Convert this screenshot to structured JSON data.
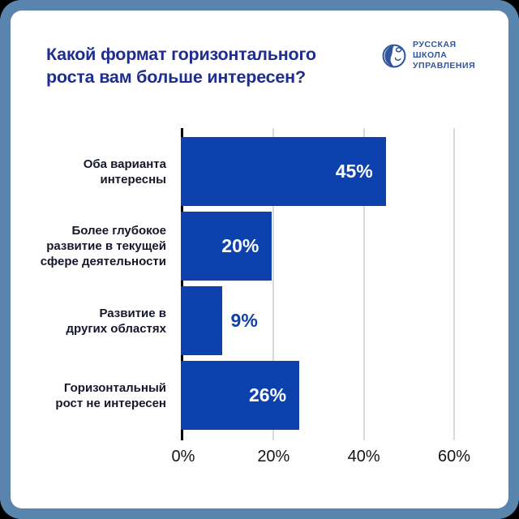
{
  "frame": {
    "outer_background": "#000000",
    "border_color": "#5884ad",
    "card_color": "#ffffff"
  },
  "header": {
    "title_line1": "Какой формат горизонтального",
    "title_line2": "роста вам больше интересен?",
    "title_color": "#1e2d91"
  },
  "logo": {
    "line1": "РУССКАЯ",
    "line2": "ШКОЛА",
    "line3": "УПРАВЛЕНИЯ",
    "color": "#2f55a0",
    "icon": "globe-icon"
  },
  "chart_data": {
    "type": "bar",
    "orientation": "horizontal",
    "title": "Какой формат горизонтального роста вам больше интересен?",
    "categories": [
      "Оба варианта интересны",
      "Более глубокое развитие в текущей сфере деятельности",
      "Развитие в других областях",
      "Горизонтальный рост не интересен"
    ],
    "categories_lines": [
      [
        "Оба варианта",
        "интересны"
      ],
      [
        "Более глубокое",
        "развитие в текущей",
        "сфере деятельности"
      ],
      [
        "Развитие в",
        "других областях"
      ],
      [
        "Горизонтальный",
        "рост не интересен"
      ]
    ],
    "values": [
      45,
      20,
      9,
      26
    ],
    "value_labels": [
      "45%",
      "20%",
      "9%",
      "26%"
    ],
    "label_inside": [
      true,
      true,
      false,
      true
    ],
    "xlim": [
      0,
      60
    ],
    "x_ticks": [
      "0%",
      "20%",
      "40%",
      "60%"
    ],
    "x_tick_values": [
      0,
      20,
      40,
      60
    ],
    "grid": "vertical",
    "legend": "none",
    "bar_color": "#0d41ae",
    "value_label_inside_color": "#ffffff",
    "value_label_outside_color": "#0d41ae",
    "gridline_color": "#d9d9d9",
    "axis_color": "#000000",
    "tick_label_color": "#141414",
    "category_label_color": "#15172b"
  }
}
